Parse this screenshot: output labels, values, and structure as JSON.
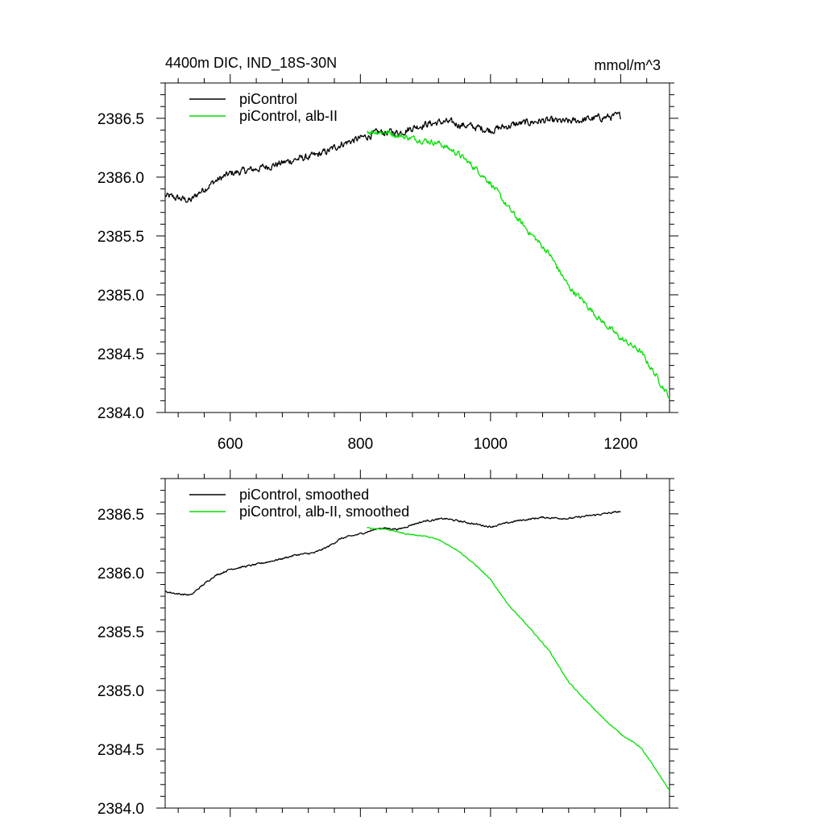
{
  "figure": {
    "title_left": "4400m DIC, IND_18S-30N",
    "title_right": "mmol/m^3"
  },
  "chart_data": [
    {
      "type": "line",
      "title": "4400m DIC, IND_18S-30N",
      "units": "mmol/m^3",
      "xlim": [
        500,
        1275
      ],
      "ylim": [
        2384.0,
        2386.8
      ],
      "x_ticks": [
        600,
        800,
        1000,
        1200
      ],
      "x_tick_labels": [
        "600",
        "800",
        "1000",
        "1200"
      ],
      "y_ticks": [
        2384.0,
        2384.5,
        2385.0,
        2385.5,
        2386.0,
        2386.5
      ],
      "y_tick_labels": [
        "2384.0",
        "2384.5",
        "2385.0",
        "2385.5",
        "2386.0",
        "2386.5"
      ],
      "legend_position": "top-left",
      "series": [
        {
          "name": "piControl",
          "color": "#000000",
          "noise": 0.025,
          "points": [
            [
              500,
              2385.84
            ],
            [
              520,
              2385.82
            ],
            [
              540,
              2385.8
            ],
            [
              550,
              2385.86
            ],
            [
              575,
              2385.96
            ],
            [
              600,
              2386.03
            ],
            [
              640,
              2386.07
            ],
            [
              680,
              2386.12
            ],
            [
              700,
              2386.15
            ],
            [
              730,
              2386.18
            ],
            [
              750,
              2386.22
            ],
            [
              770,
              2386.28
            ],
            [
              800,
              2386.33
            ],
            [
              830,
              2386.38
            ],
            [
              860,
              2386.38
            ],
            [
              880,
              2386.42
            ],
            [
              900,
              2386.45
            ],
            [
              930,
              2386.47
            ],
            [
              960,
              2386.44
            ],
            [
              1000,
              2386.4
            ],
            [
              1040,
              2386.45
            ],
            [
              1080,
              2386.48
            ],
            [
              1120,
              2386.47
            ],
            [
              1160,
              2386.5
            ],
            [
              1200,
              2386.52
            ]
          ]
        },
        {
          "name": "piControl, alb-II",
          "color": "#00e000",
          "noise": 0.02,
          "points": [
            [
              810,
              2386.39
            ],
            [
              840,
              2386.38
            ],
            [
              870,
              2386.34
            ],
            [
              900,
              2386.31
            ],
            [
              920,
              2386.29
            ],
            [
              950,
              2386.2
            ],
            [
              980,
              2386.06
            ],
            [
              1000,
              2385.95
            ],
            [
              1030,
              2385.72
            ],
            [
              1060,
              2385.53
            ],
            [
              1090,
              2385.35
            ],
            [
              1120,
              2385.07
            ],
            [
              1140,
              2384.96
            ],
            [
              1170,
              2384.78
            ],
            [
              1200,
              2384.63
            ],
            [
              1230,
              2384.52
            ],
            [
              1250,
              2384.35
            ],
            [
              1275,
              2384.13
            ]
          ]
        }
      ]
    },
    {
      "type": "line",
      "title": "",
      "xlim": [
        500,
        1275
      ],
      "ylim": [
        2384.0,
        2386.8
      ],
      "x_ticks": [
        600,
        800,
        1000,
        1200
      ],
      "x_tick_labels": [],
      "y_ticks": [
        2384.0,
        2384.5,
        2385.0,
        2385.5,
        2386.0,
        2386.5
      ],
      "y_tick_labels": [
        "2384.0",
        "2384.5",
        "2385.0",
        "2385.5",
        "2386.0",
        "2386.5"
      ],
      "legend_position": "top-left",
      "series": [
        {
          "name": "piControl, smoothed",
          "color": "#000000",
          "noise": 0.006,
          "points": [
            [
              500,
              2385.84
            ],
            [
              520,
              2385.82
            ],
            [
              540,
              2385.81
            ],
            [
              550,
              2385.86
            ],
            [
              575,
              2385.97
            ],
            [
              600,
              2386.03
            ],
            [
              640,
              2386.07
            ],
            [
              680,
              2386.12
            ],
            [
              700,
              2386.15
            ],
            [
              730,
              2386.17
            ],
            [
              750,
              2386.22
            ],
            [
              770,
              2386.29
            ],
            [
              800,
              2386.33
            ],
            [
              830,
              2386.38
            ],
            [
              860,
              2386.37
            ],
            [
              880,
              2386.41
            ],
            [
              900,
              2386.44
            ],
            [
              930,
              2386.46
            ],
            [
              960,
              2386.43
            ],
            [
              1000,
              2386.39
            ],
            [
              1040,
              2386.44
            ],
            [
              1080,
              2386.47
            ],
            [
              1120,
              2386.46
            ],
            [
              1160,
              2386.49
            ],
            [
              1200,
              2386.52
            ]
          ]
        },
        {
          "name": "piControl, alb-II, smoothed",
          "color": "#00e000",
          "noise": 0.004,
          "points": [
            [
              810,
              2386.38
            ],
            [
              840,
              2386.37
            ],
            [
              870,
              2386.33
            ],
            [
              900,
              2386.31
            ],
            [
              920,
              2386.28
            ],
            [
              950,
              2386.19
            ],
            [
              980,
              2386.05
            ],
            [
              1000,
              2385.94
            ],
            [
              1030,
              2385.71
            ],
            [
              1060,
              2385.53
            ],
            [
              1090,
              2385.34
            ],
            [
              1120,
              2385.07
            ],
            [
              1140,
              2384.95
            ],
            [
              1170,
              2384.78
            ],
            [
              1200,
              2384.63
            ],
            [
              1230,
              2384.52
            ],
            [
              1250,
              2384.36
            ],
            [
              1275,
              2384.15
            ]
          ]
        }
      ]
    }
  ]
}
